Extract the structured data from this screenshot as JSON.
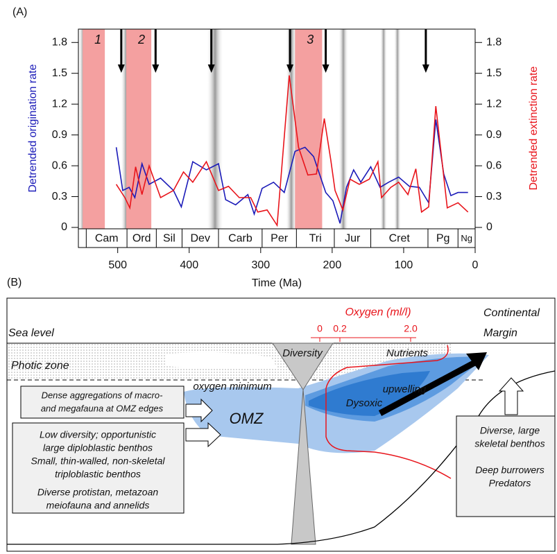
{
  "chart_data": {
    "type": "line",
    "panel_label": "(A)",
    "xlabel": "Time (Ma)",
    "xlim": [
      555,
      0
    ],
    "xticks": [
      500,
      400,
      300,
      200,
      100,
      0
    ],
    "ylim": [
      0,
      1.93
    ],
    "yticks": [
      0,
      0.3,
      0.6,
      0.9,
      1.2,
      1.5,
      1.8
    ],
    "y2lim": [
      0,
      1.93
    ],
    "y2ticks": [
      0,
      0.3,
      0.6,
      0.9,
      1.2,
      1.5,
      1.8
    ],
    "series": [
      {
        "name": "Detrended origination rate",
        "color": "#1a1ab8",
        "x": [
          502,
          493,
          484,
          476,
          466,
          456,
          440,
          422,
          411,
          395,
          376,
          359,
          349,
          335,
          318,
          309,
          298,
          282,
          267,
          252,
          238,
          226,
          209,
          199,
          189,
          180,
          170,
          160,
          146,
          133,
          121,
          107,
          92,
          78,
          65,
          55,
          44,
          34,
          24,
          10
        ],
        "values": [
          0.78,
          0.36,
          0.39,
          0.29,
          0.62,
          0.42,
          0.48,
          0.36,
          0.2,
          0.64,
          0.56,
          0.62,
          0.27,
          0.22,
          0.32,
          0.13,
          0.38,
          0.44,
          0.34,
          0.74,
          0.78,
          0.69,
          0.34,
          0.26,
          0.04,
          0.39,
          0.56,
          0.44,
          0.59,
          0.39,
          0.44,
          0.49,
          0.4,
          0.39,
          0.24,
          1.05,
          0.52,
          0.31,
          0.34,
          0.34
        ]
      },
      {
        "name": "Detrended extinction rate",
        "color": "#e8141b",
        "axis": "y2",
        "x": [
          502,
          490,
          483,
          475,
          466,
          456,
          440,
          422,
          408,
          395,
          376,
          359,
          345,
          330,
          314,
          304,
          291,
          277,
          260,
          247,
          234,
          222,
          211,
          202,
          196,
          185,
          175,
          162,
          148,
          136,
          131,
          118,
          107,
          94,
          83,
          75,
          65,
          55,
          39,
          24,
          10
        ],
        "values": [
          0.42,
          0.29,
          0.19,
          0.59,
          0.32,
          0.6,
          0.29,
          0.36,
          0.54,
          0.44,
          0.64,
          0.36,
          0.4,
          0.29,
          0.29,
          0.15,
          0.17,
          0.02,
          1.48,
          0.78,
          0.51,
          0.52,
          1.06,
          0.66,
          0.36,
          0.17,
          0.47,
          0.42,
          0.47,
          0.64,
          0.29,
          0.39,
          0.44,
          0.32,
          0.57,
          0.15,
          0.2,
          1.18,
          0.19,
          0.24,
          0.15
        ]
      }
    ],
    "shaded_intervals": [
      {
        "label": "1",
        "range": [
          549,
          518
        ],
        "color": "#f4a0a0"
      },
      {
        "label": "2",
        "range": [
          488,
          453
        ],
        "color": "#f4a0a0"
      },
      {
        "label": "3",
        "range": [
          252,
          214
        ],
        "color": "#f4a0a0"
      }
    ],
    "arrows": [
      495,
      447,
      369,
      259,
      209,
      69
    ],
    "periods": {
      "names": [
        "Cam",
        "Ord",
        "Sil",
        "Dev",
        "Carb",
        "Per",
        "Tri",
        "Jur",
        "Cret",
        "Pg",
        "Ng"
      ],
      "bounds": [
        544,
        487,
        446,
        410,
        359,
        298,
        250,
        197,
        146,
        66,
        24,
        0
      ]
    }
  },
  "diagram": {
    "panel_label": "(B)",
    "oxygen_title": "Oxygen (ml/l)",
    "oxygen_ticks": [
      "0",
      "0.2",
      "2.0"
    ],
    "margin_label": [
      "Continental",
      "Margin"
    ],
    "sea_level": "Sea level",
    "photic_zone": "Photic zone",
    "diversity": "Diversity",
    "nutrients": "Nutrients",
    "oxygen_minimum": "oxygen minimum",
    "upwelling": "upwelling",
    "omz": "OMZ",
    "dysoxic": "Dysoxic",
    "edge_box": [
      "Dense aggregations of macro-",
      "and megafauna at OMZ edges"
    ],
    "omz_box": [
      "Low diversity; opportunistic",
      "large diploblastic benthos",
      "Small, thin-walled, non-skeletal",
      "triploblastic benthos",
      "Diverse protistan, metazoan",
      "meiofauna and annelids"
    ],
    "right_box": [
      "Diverse, large",
      "skeletal benthos",
      "Deep burrowers",
      "Predators"
    ]
  }
}
